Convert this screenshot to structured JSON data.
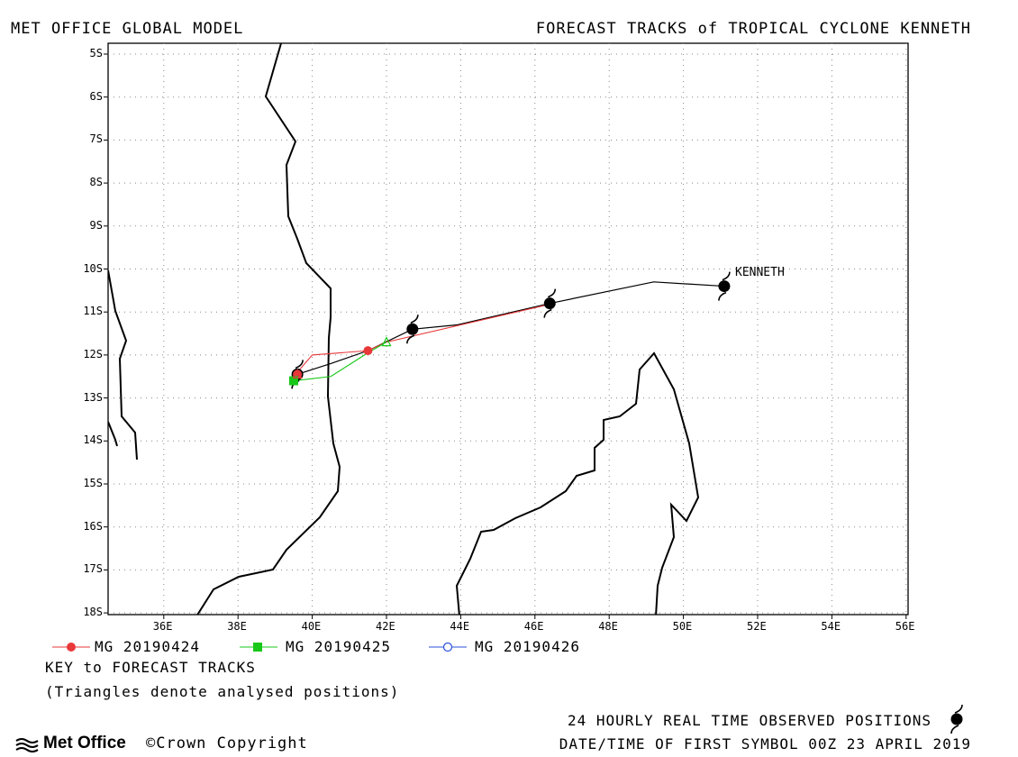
{
  "header": {
    "left_title": "MET OFFICE GLOBAL MODEL",
    "right_title": "FORECAST TRACKS of TROPICAL CYCLONE KENNETH"
  },
  "map": {
    "lat_labels": [
      "5S",
      "6S",
      "7S",
      "8S",
      "9S",
      "10S",
      "11S",
      "12S",
      "13S",
      "14S",
      "15S",
      "16S",
      "17S",
      "18S"
    ],
    "lon_labels": [
      "36E",
      "38E",
      "40E",
      "42E",
      "44E",
      "46E",
      "48E",
      "50E",
      "52E",
      "54E",
      "56E"
    ],
    "lon_range": [
      34.5,
      56.3
    ],
    "lat_range": [
      -18,
      -5
    ],
    "grid": "dotted",
    "storm_label": "KENNETH",
    "colors": {
      "observed": "#000000",
      "run1": "#e8383a",
      "run2": "#18c818",
      "run3": "#2a50d8",
      "coast": "#000000"
    }
  },
  "tracks": {
    "observed": [
      [
        51.1,
        -10.4
      ],
      [
        49.2,
        -10.3
      ],
      [
        46.4,
        -10.8
      ],
      [
        43.9,
        -11.3
      ],
      [
        42.7,
        -11.4
      ],
      [
        41.5,
        -11.9
      ],
      [
        40.5,
        -12.2
      ],
      [
        39.6,
        -12.45
      ]
    ],
    "observed_symbols": [
      [
        51.1,
        -10.4
      ],
      [
        46.4,
        -10.8
      ],
      [
        42.7,
        -11.4
      ],
      [
        39.6,
        -12.45
      ]
    ],
    "run1": [
      [
        46.5,
        -10.8
      ],
      [
        44.0,
        -11.3
      ],
      [
        42.0,
        -11.7
      ],
      [
        41.5,
        -11.9
      ],
      [
        40.0,
        -12.0
      ],
      [
        39.6,
        -12.4
      ]
    ],
    "run1_symbols": [
      [
        41.5,
        -11.9
      ],
      [
        39.6,
        -12.45
      ]
    ],
    "run1_triangle": [
      39.6,
      -12.45
    ],
    "run2": [
      [
        42.0,
        -11.7
      ],
      [
        41.5,
        -11.95
      ],
      [
        40.5,
        -12.5
      ],
      [
        39.5,
        -12.6
      ]
    ],
    "run2_symbols": [
      [
        39.5,
        -12.6
      ]
    ],
    "run2_triangle": [
      42.0,
      -11.7
    ]
  },
  "legend": [
    {
      "label": "MG 20190424",
      "color": "#e8383a",
      "marker": "circle-filled"
    },
    {
      "label": "MG 20190425",
      "color": "#18c818",
      "marker": "square-filled"
    },
    {
      "label": "MG 20190426",
      "color": "#2a50d8",
      "marker": "circle-open"
    }
  ],
  "key": {
    "title": "KEY to FORECAST TRACKS",
    "note": "(Triangles denote analysed positions)"
  },
  "footer": {
    "observed_label": "24 HOURLY REAL TIME OBSERVED POSITIONS",
    "datetime": "DATE/TIME OF FIRST SYMBOL 00Z 23 APRIL 2019",
    "logo": "Met Office",
    "copyright": "©Crown Copyright"
  }
}
